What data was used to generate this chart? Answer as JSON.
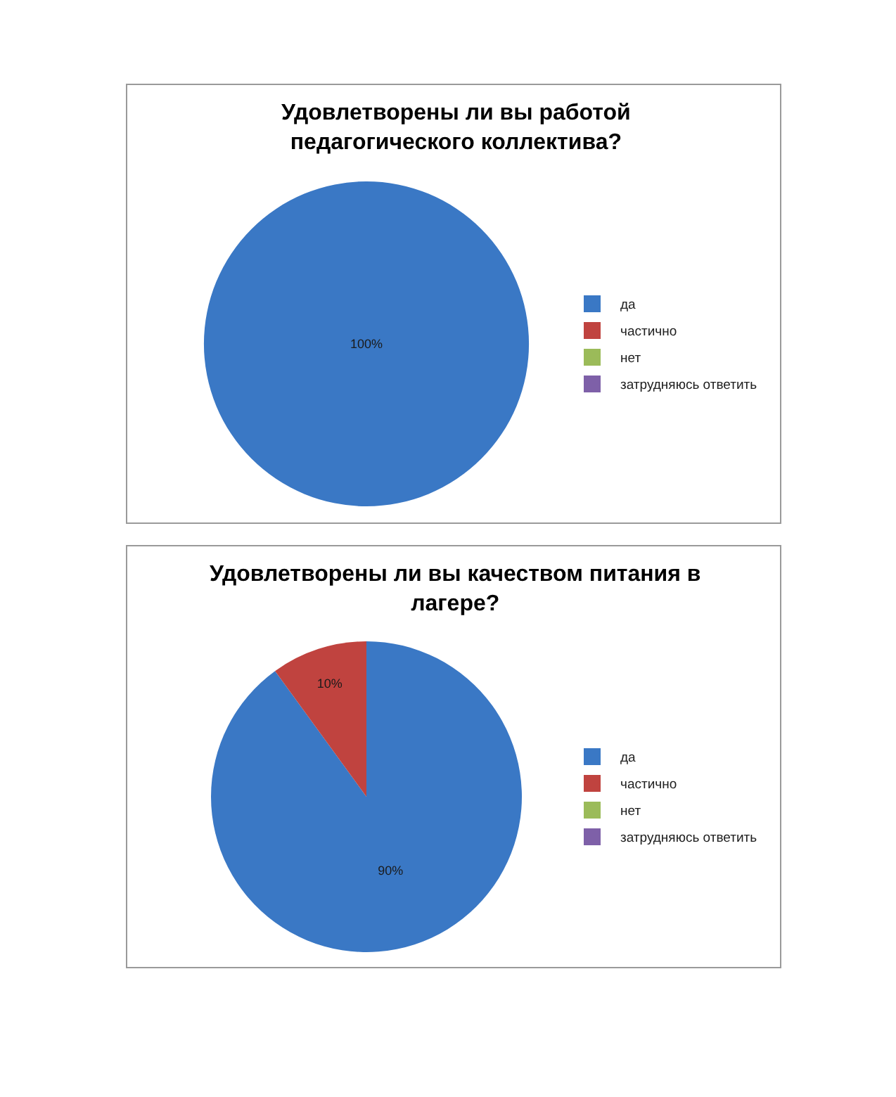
{
  "chart_data": [
    {
      "type": "pie",
      "title": "Удовлетворены ли вы работой педагогического коллектива?",
      "categories": [
        "да",
        "частично",
        "нет",
        "затрудняюсь ответить"
      ],
      "values": [
        100,
        0,
        0,
        0
      ],
      "colors": [
        "#3a78c5",
        "#c0433f",
        "#9bbb59",
        "#7e60a8"
      ],
      "value_labels": [
        "100%",
        null,
        null,
        null
      ],
      "legend": "right"
    },
    {
      "type": "pie",
      "title": "Удовлетворены ли вы качеством питания в лагере?",
      "categories": [
        "да",
        "частично",
        "нет",
        "затрудняюсь ответить"
      ],
      "values": [
        90,
        10,
        0,
        0
      ],
      "colors": [
        "#3a78c5",
        "#c0433f",
        "#9bbb59",
        "#7e60a8"
      ],
      "value_labels": [
        "90%",
        "10%",
        null,
        null
      ],
      "legend": "right"
    }
  ]
}
